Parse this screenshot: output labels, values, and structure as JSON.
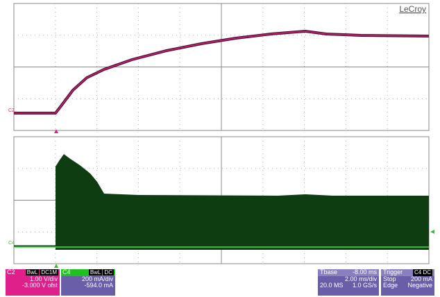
{
  "brand": "LeCroy",
  "traces": {
    "top_label": "C2",
    "bottom_label": "C4"
  },
  "c2": {
    "name": "C2",
    "tags": [
      "BwL",
      "DC1M"
    ],
    "scale": "1.00 V/div",
    "offset": "-3.000 V ofst"
  },
  "c4": {
    "name": "C4",
    "tags": [
      "BwL",
      "DC"
    ],
    "scale": "200 mA/div",
    "offset": "-594.0 mA"
  },
  "tbase": {
    "name": "Tbase",
    "delay": "-8.00 ms",
    "scale": "2.00 ms/div",
    "samples": "20.0 MS",
    "rate": "1.0 GS/s"
  },
  "trigger": {
    "name": "Trigger",
    "source": "C4 DC",
    "mode": "Stop",
    "level": "200 mA",
    "type": "Edge",
    "slope": "Negative"
  }
}
